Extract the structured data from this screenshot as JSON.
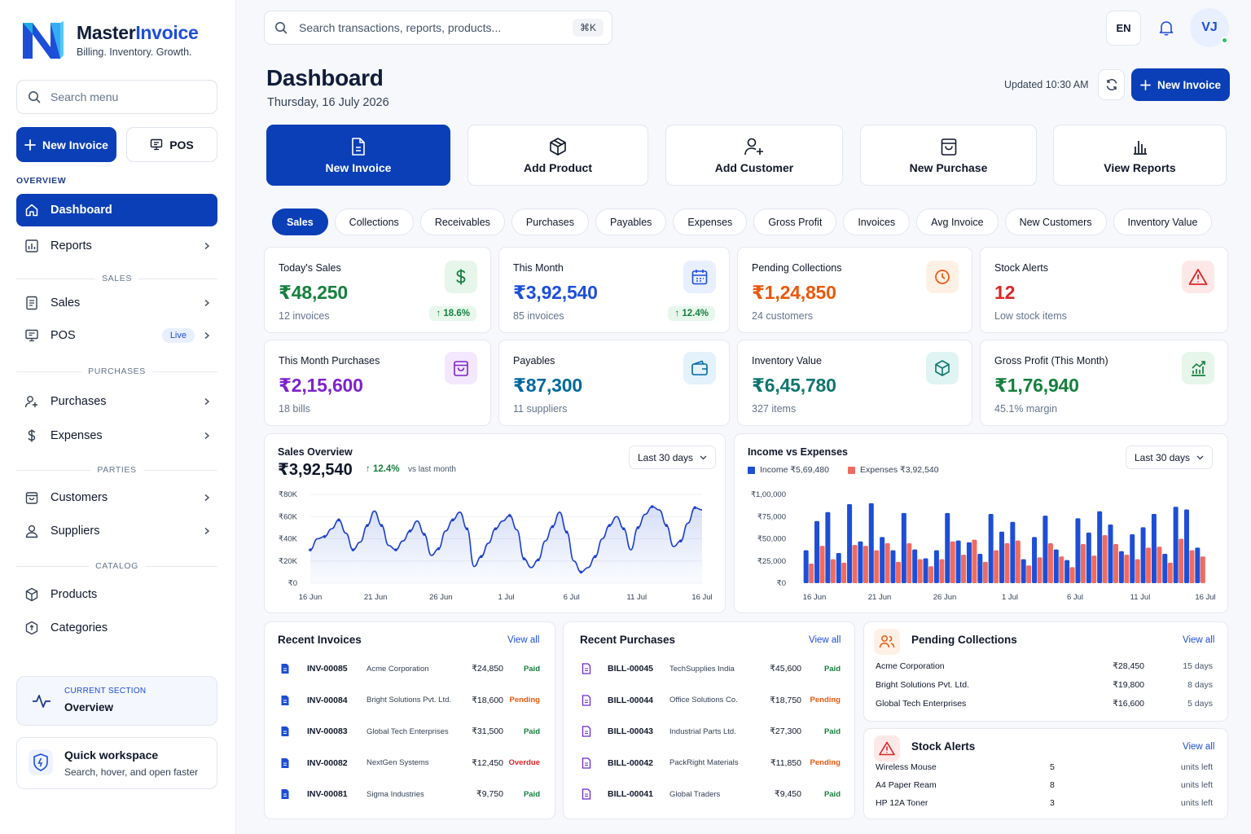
{
  "brand": {
    "name_main": "Master",
    "name_accent": "Invoice",
    "tagline": "Billing. Inventory. Growth."
  },
  "sidebar": {
    "search_placeholder": "Search menu",
    "new_invoice": "New Invoice",
    "pos": "POS",
    "sections": {
      "overview": "OVERVIEW",
      "sales": "SALES",
      "purchases": "PURCHASES",
      "parties": "PARTIES",
      "catalog": "CATALOG"
    },
    "items": {
      "dashboard": "Dashboard",
      "reports": "Reports",
      "sales": "Sales",
      "pos": "POS",
      "pos_badge": "Live",
      "purchases": "Purchases",
      "expenses": "Expenses",
      "customers": "Customers",
      "suppliers": "Suppliers",
      "products": "Products",
      "categories": "Categories"
    },
    "current_section": {
      "label": "CURRENT SECTION",
      "value": "Overview"
    },
    "workspace": {
      "title": "Quick workspace",
      "subtitle": "Search, hover, and open faster"
    }
  },
  "topbar": {
    "search_placeholder": "Search transactions, reports, products...",
    "shortcut": "⌘K",
    "lang": "EN",
    "avatar": "VJ"
  },
  "header": {
    "title": "Dashboard",
    "date": "Thursday, 16 July 2026",
    "updated": "Updated 10:30 AM",
    "new_invoice": "New Invoice"
  },
  "quick_actions": [
    "New Invoice",
    "Add Product",
    "Add Customer",
    "New Purchase",
    "View Reports"
  ],
  "tabs": [
    "Sales",
    "Collections",
    "Receivables",
    "Purchases",
    "Payables",
    "Expenses",
    "Gross Profit",
    "Invoices",
    "Avg Invoice",
    "New Customers",
    "Inventory Value"
  ],
  "kpis": [
    {
      "label": "Today's Sales",
      "value": "₹48,250",
      "sub": "12 invoices",
      "change": "↑ 18.6%",
      "color": "#15803d",
      "icon": "dollar-icon"
    },
    {
      "label": "This Month",
      "value": "₹3,92,540",
      "sub": "85 invoices",
      "change": "↑ 12.4%",
      "color": "#1d4ed8",
      "icon": "calendar-icon"
    },
    {
      "label": "Pending Collections",
      "value": "₹1,24,850",
      "sub": "24 customers",
      "color": "#ea580c",
      "icon": "clock-icon"
    },
    {
      "label": "Stock Alerts",
      "value": "12",
      "sub": "Low stock items",
      "color": "#dc2626",
      "icon": "warning-icon"
    },
    {
      "label": "This Month Purchases",
      "value": "₹2,15,600",
      "sub": "18 bills",
      "color": "#7e22ce",
      "icon": "bag-icon"
    },
    {
      "label": "Payables",
      "value": "₹87,300",
      "sub": "11 suppliers",
      "color": "#0369a1",
      "icon": "wallet-icon"
    },
    {
      "label": "Inventory Value",
      "value": "₹6,45,780",
      "sub": "327 items",
      "color": "#0f766e",
      "icon": "box-icon"
    },
    {
      "label": "Gross Profit (This Month)",
      "value": "₹1,76,940",
      "sub": "45.1% margin",
      "color": "#15803d",
      "icon": "chart-up-icon"
    }
  ],
  "sales_overview": {
    "title": "Sales Overview",
    "total": "₹3,92,540",
    "change": "↑ 12.4%",
    "vs": "vs last month",
    "range": "Last 30 days"
  },
  "income_expense": {
    "title": "Income vs Expenses",
    "income_label": "Income ₹5,69,480",
    "expense_label": "Expenses ₹3,92,540",
    "range": "Last 30 days"
  },
  "chart_data": [
    {
      "type": "area",
      "title": "Sales Overview",
      "x_ticks": [
        "16 Jun",
        "21 Jun",
        "26 Jun",
        "1 Jul",
        "6 Jul",
        "11 Jul",
        "16 Jul"
      ],
      "y_ticks": [
        "₹0",
        "₹20K",
        "₹40K",
        "₹60K",
        "₹80K"
      ],
      "ylim": [
        0,
        80000
      ],
      "values": [
        30000,
        40000,
        42000,
        49000,
        57000,
        45000,
        30000,
        37000,
        52000,
        65000,
        52000,
        34000,
        30000,
        38000,
        47000,
        56000,
        44000,
        25000,
        31000,
        47000,
        57000,
        64000,
        49000,
        15000,
        24000,
        36000,
        49000,
        56000,
        61000,
        48000,
        22000,
        14000,
        21000,
        38000,
        51000,
        64000,
        46000,
        20000,
        10000,
        14000,
        24000,
        40000,
        52000,
        60000,
        49000,
        30000,
        50000,
        62000,
        69000,
        66000,
        52000,
        33000,
        38000,
        54000,
        68000,
        66000
      ],
      "grid": true
    },
    {
      "type": "bar",
      "title": "Income vs Expenses",
      "x_ticks": [
        "16 Jun",
        "21 Jun",
        "26 Jun",
        "1 Jul",
        "6 Jul",
        "11 Jul",
        "16 Jul"
      ],
      "y_ticks": [
        "₹0",
        "₹25,000",
        "₹50,000",
        "₹75,000",
        "₹1,00,000"
      ],
      "ylim": [
        0,
        100000
      ],
      "series": [
        {
          "name": "Income",
          "color": "#1d4ed8",
          "values": [
            37000,
            70000,
            80000,
            34000,
            89000,
            47000,
            90000,
            52000,
            37000,
            79000,
            38000,
            28000,
            37000,
            79000,
            48000,
            46000,
            33000,
            78000,
            58000,
            69000,
            27000,
            52000,
            76000,
            38000,
            26000,
            73000,
            57000,
            81000,
            66000,
            36000,
            55000,
            63000,
            78000,
            33000,
            86000,
            83000,
            40000
          ]
        },
        {
          "name": "Expenses",
          "color": "#ef6b61",
          "values": [
            22000,
            42000,
            27000,
            23000,
            43000,
            42000,
            37000,
            45000,
            24000,
            45000,
            27000,
            19000,
            27000,
            47000,
            32000,
            49000,
            24000,
            37000,
            45000,
            48000,
            20000,
            29000,
            45000,
            30000,
            18000,
            44000,
            31000,
            54000,
            44000,
            32000,
            27000,
            40000,
            41000,
            23000,
            50000,
            37000,
            30000
          ]
        }
      ],
      "grid": false
    }
  ],
  "recent_invoices": {
    "title": "Recent Invoices",
    "view_all": "View all",
    "rows": [
      {
        "id": "INV-00085",
        "party": "Acme Corporation",
        "amount": "₹24,850",
        "status": "Paid",
        "kind": "paid"
      },
      {
        "id": "INV-00084",
        "party": "Bright Solutions Pvt. Ltd.",
        "amount": "₹18,600",
        "status": "Pending",
        "kind": "pending"
      },
      {
        "id": "INV-00083",
        "party": "Global Tech Enterprises",
        "amount": "₹31,500",
        "status": "Paid",
        "kind": "paid"
      },
      {
        "id": "INV-00082",
        "party": "NextGen Systems",
        "amount": "₹12,450",
        "status": "Overdue",
        "kind": "overdue"
      },
      {
        "id": "INV-00081",
        "party": "Sigma Industries",
        "amount": "₹9,750",
        "status": "Paid",
        "kind": "paid"
      }
    ]
  },
  "recent_purchases": {
    "title": "Recent Purchases",
    "view_all": "View all",
    "rows": [
      {
        "id": "BILL-00045",
        "party": "TechSupplies India",
        "amount": "₹45,600",
        "status": "Paid",
        "kind": "paid"
      },
      {
        "id": "BILL-00044",
        "party": "Office Solutions Co.",
        "amount": "₹18,750",
        "status": "Pending",
        "kind": "pending"
      },
      {
        "id": "BILL-00043",
        "party": "Industrial Parts Ltd.",
        "amount": "₹27,300",
        "status": "Paid",
        "kind": "paid"
      },
      {
        "id": "BILL-00042",
        "party": "PackRight Materials",
        "amount": "₹11,850",
        "status": "Pending",
        "kind": "pending"
      },
      {
        "id": "BILL-00041",
        "party": "Global Traders",
        "amount": "₹9,450",
        "status": "Paid",
        "kind": "paid"
      }
    ]
  },
  "pending_collections": {
    "title": "Pending Collections",
    "view_all": "View all",
    "rows": [
      {
        "party": "Acme Corporation",
        "amount": "₹28,450",
        "days": "15 days"
      },
      {
        "party": "Bright Solutions Pvt. Ltd.",
        "amount": "₹19,800",
        "days": "8 days"
      },
      {
        "party": "Global Tech Enterprises",
        "amount": "₹16,600",
        "days": "5 days"
      }
    ]
  },
  "stock_alerts": {
    "title": "Stock Alerts",
    "view_all": "View all",
    "rows": [
      {
        "item": "Wireless Mouse",
        "qty": "5",
        "unit": "units left"
      },
      {
        "item": "A4 Paper Ream",
        "qty": "8",
        "unit": "units left"
      },
      {
        "item": "HP 12A Toner",
        "qty": "3",
        "unit": "units left"
      }
    ]
  }
}
